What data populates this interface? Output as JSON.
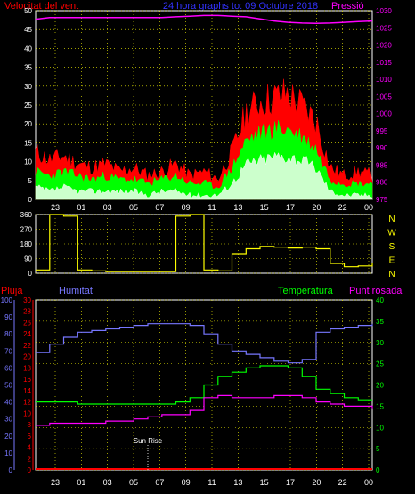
{
  "header": {
    "left_label": "Velocitat del vent",
    "center_label": "24 hora graphs to:  09 Octubre 2018",
    "right_label": "Pressió"
  },
  "colors": {
    "wind_gust": "#ff0000",
    "wind_avg": "#00ff00",
    "wind_low": "#ccffcc",
    "pressure": "#ff00ff",
    "direction": "#ffff00",
    "humidity": "#7777ff",
    "temperature": "#00ff00",
    "dew_point": "#ff00ff",
    "rain": "#ff0000",
    "grid": "#ffff00"
  },
  "time_ticks": [
    "23",
    "01",
    "03",
    "05",
    "07",
    "09",
    "11",
    "13",
    "15",
    "17",
    "20",
    "22",
    "00"
  ],
  "panel_wind": {
    "left_axis": [
      "0",
      "5",
      "10",
      "15",
      "20",
      "25",
      "30",
      "35",
      "40",
      "45",
      "50"
    ],
    "right_axis": [
      "975",
      "980",
      "985",
      "990",
      "995",
      "1000",
      "1005",
      "1010",
      "1015",
      "1020",
      "1025",
      "1030"
    ]
  },
  "panel_direction": {
    "left_axis": [
      "0",
      "90",
      "180",
      "270",
      "360"
    ],
    "compass": [
      "N",
      "W",
      "S",
      "E",
      "N"
    ]
  },
  "panel_climate": {
    "labels": {
      "rain": "Pluja",
      "humidity": "Humitat",
      "temperature": "Temperatura",
      "dew_point": "Punt rosada"
    },
    "humidity_axis": [
      "0",
      "10",
      "20",
      "30",
      "40",
      "50",
      "60",
      "70",
      "80",
      "90",
      "100"
    ],
    "rain_axis": [
      "0",
      "2",
      "4",
      "6",
      "8",
      "10",
      "12",
      "14",
      "16",
      "18",
      "20",
      "22",
      "24",
      "26",
      "28",
      "30"
    ],
    "temp_axis": [
      "0",
      "5",
      "10",
      "15",
      "20",
      "25",
      "30",
      "35",
      "40"
    ],
    "sunrise_label": "Sun Rise",
    "sunrise_hour": 8.0
  },
  "chart_data": [
    {
      "type": "line",
      "xlabel": "",
      "ylabel": "Velocitat del vent",
      "ylim": [
        0,
        50
      ],
      "y2label": "Pressió",
      "y2lim": [
        975,
        1030
      ],
      "x": [
        0,
        1,
        2,
        3,
        4,
        5,
        6,
        7,
        8,
        9,
        10,
        11,
        12,
        13,
        14,
        15,
        16,
        17,
        18,
        19,
        20,
        21,
        22,
        23,
        24
      ],
      "series": [
        {
          "values": [
            12,
            10,
            11,
            9,
            8,
            9,
            7,
            8,
            6,
            7,
            9,
            6,
            7,
            5,
            12,
            22,
            25,
            26,
            27,
            24,
            20,
            8,
            6,
            7,
            6
          ]
        },
        {
          "values": [
            7,
            6,
            7,
            6,
            5,
            6,
            5,
            5,
            4,
            5,
            6,
            4,
            4,
            3,
            8,
            15,
            17,
            18,
            18,
            16,
            13,
            5,
            4,
            4,
            4
          ]
        },
        {
          "values": [
            3,
            2,
            3,
            2,
            2,
            2,
            2,
            2,
            1,
            2,
            2,
            1,
            1,
            1,
            4,
            9,
            10,
            11,
            11,
            10,
            8,
            2,
            1,
            1,
            1
          ]
        },
        {
          "name": "Pressió",
          "values": [
            1027.5,
            1028,
            1028,
            1028,
            1028,
            1028,
            1028,
            1028,
            1028,
            1028,
            1028.2,
            1028.4,
            1028.6,
            1028.6,
            1028.4,
            1028.2,
            1027.6,
            1027,
            1026.6,
            1026.4,
            1026.3,
            1026.4,
            1026.6,
            1026.8,
            1027
          ]
        }
      ]
    },
    {
      "type": "line",
      "ylabel": "",
      "ylim": [
        0,
        360
      ],
      "x": [
        0,
        1,
        2,
        3,
        4,
        5,
        6,
        7,
        8,
        9,
        10,
        11,
        12,
        13,
        14,
        15,
        16,
        17,
        18,
        19,
        20,
        21,
        22,
        23,
        24
      ],
      "series": [
        {
          "values": [
            20,
            360,
            350,
            20,
            15,
            10,
            10,
            10,
            10,
            10,
            350,
            360,
            20,
            15,
            120,
            150,
            165,
            160,
            155,
            160,
            150,
            60,
            40,
            45,
            60
          ]
        }
      ]
    },
    {
      "type": "line",
      "ylim": [
        0,
        100
      ],
      "x": [
        0,
        1,
        2,
        3,
        4,
        5,
        6,
        7,
        8,
        9,
        10,
        11,
        12,
        13,
        14,
        15,
        16,
        17,
        18,
        19,
        20,
        21,
        22,
        23,
        24
      ],
      "series": [
        {
          "name": "Humitat",
          "values": [
            69,
            74,
            78,
            81,
            82,
            83,
            84,
            85,
            86,
            86,
            86,
            85,
            80,
            74,
            70,
            68,
            66,
            64,
            63,
            65,
            81,
            83,
            84,
            85,
            86
          ]
        },
        {
          "name": "Temperatura",
          "values": [
            16,
            16,
            16,
            15.5,
            15.5,
            15.5,
            15.5,
            15.5,
            15.5,
            15.5,
            16,
            17,
            20,
            22,
            23,
            24,
            24.5,
            24.5,
            24,
            22,
            19,
            18,
            17,
            16.5,
            16.5
          ]
        },
        {
          "name": "Punt rosada",
          "values": [
            10.5,
            11,
            11,
            11,
            11,
            11.5,
            11.5,
            12,
            12.5,
            13,
            13,
            14,
            17,
            17.5,
            17,
            17,
            17,
            17.5,
            17.5,
            17,
            16,
            15.5,
            15,
            15,
            14.5
          ]
        },
        {
          "name": "Pluja",
          "values": [
            0,
            0,
            0,
            0,
            0,
            0,
            0,
            0,
            0,
            0,
            0,
            0,
            0,
            0,
            0,
            0,
            0,
            0,
            0,
            0,
            0,
            0,
            0,
            0,
            0
          ]
        }
      ]
    }
  ]
}
